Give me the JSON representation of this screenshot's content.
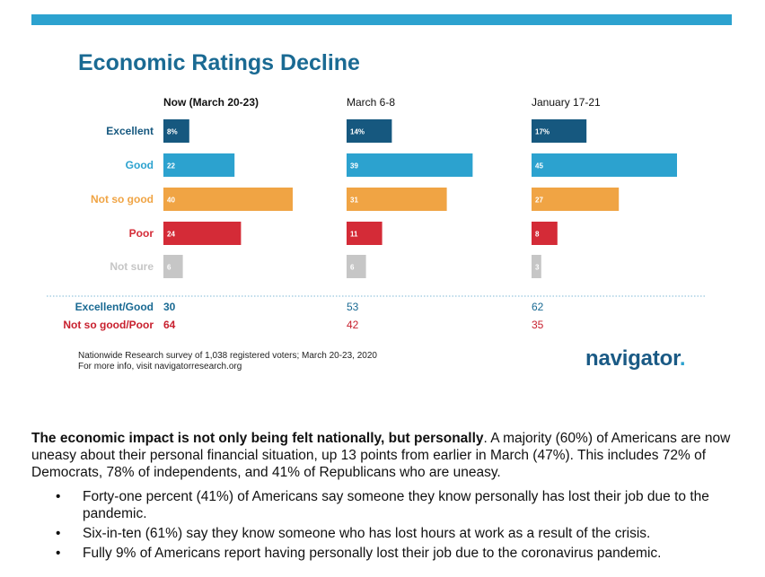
{
  "title": "Economic Ratings Decline",
  "colors": {
    "band": "#2ca2cf",
    "title": "#1a6a93",
    "Excellent": "#16587f",
    "Good": "#2ca2cf",
    "Not so good": "#f0a444",
    "Poor": "#d42b37",
    "Not sure": "#c6c6c6",
    "summary_pos": "#1a6a93",
    "summary_neg": "#c8202e"
  },
  "chart_data": {
    "type": "bar",
    "orientation": "horizontal",
    "title": "Economic Ratings Decline",
    "categories": [
      "Excellent",
      "Good",
      "Not so good",
      "Poor",
      "Not sure"
    ],
    "series": [
      {
        "name": "Now (March 20-23)",
        "values": [
          8,
          22,
          40,
          24,
          6
        ],
        "labels": [
          "8%",
          "22",
          "40",
          "24",
          "6"
        ]
      },
      {
        "name": "March 6-8",
        "values": [
          14,
          39,
          31,
          11,
          6
        ],
        "labels": [
          "14%",
          "39",
          "31",
          "11",
          "6"
        ]
      },
      {
        "name": "January 17-21",
        "values": [
          17,
          45,
          27,
          8,
          3
        ],
        "labels": [
          "17%",
          "45",
          "27",
          "8",
          "3"
        ]
      }
    ],
    "summary_rows": [
      {
        "label": "Excellent/Good",
        "values": [
          "30",
          "53",
          "62"
        ]
      },
      {
        "label": "Not so good/Poor",
        "values": [
          "64",
          "42",
          "35"
        ]
      }
    ]
  },
  "source": {
    "line1": "Nationwide Research survey of 1,038 registered voters; March 20-23, 2020",
    "line2": "For more info, visit navigatorresearch.org"
  },
  "logo": {
    "text": "navigator",
    "dot": "."
  },
  "body": {
    "lead_bold": "The economic impact is not only being felt nationally, but personally",
    "lead_rest": ". A majority (60%) of Americans are now uneasy about their personal financial situation, up 13 points from earlier in March (47%). This includes 72% of Democrats, 78% of independents, and 41% of Republicans who are uneasy.",
    "bullet_glyph": "•",
    "bullets": [
      "Forty-one percent (41%) of Americans say someone they know personally has lost their job due to the pandemic.",
      "Six-in-ten (61%) say they know someone who has lost hours at work as a result of the crisis.",
      "Fully 9% of Americans report having personally lost their job due to the coronavirus pandemic."
    ]
  }
}
